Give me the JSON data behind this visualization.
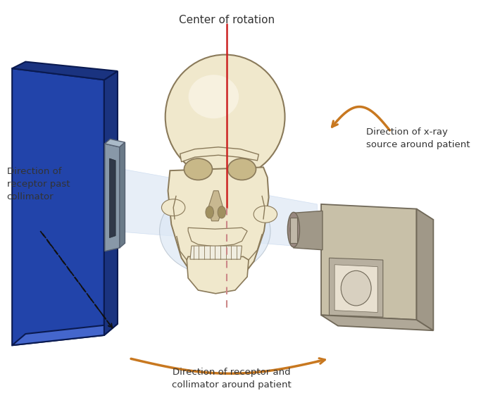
{
  "title": "Center of rotation",
  "label_receptor_past": "Direction of\nreceptor past\ncollimator",
  "label_xray_source": "Direction of x-ray\nsource around patient",
  "label_receptor_collimator": "Direction of receptor and\ncollimator around patient",
  "bg_color": "#ffffff",
  "panel_front_color": "#2244aa",
  "panel_top_color": "#4466cc",
  "panel_side_color": "#1a3380",
  "panel_edge_color": "#0a1a50",
  "collimator_face_color": "#8898a8",
  "collimator_side_color": "#6a7a88",
  "collimator_slot_color": "#303848",
  "skull_fill": "#f0e8cc",
  "skull_stroke": "#8a7a5a",
  "skull_shadow": "#c8b890",
  "xray_box_fill": "#c8c0a8",
  "xray_box_top": "#b0a898",
  "xray_box_side": "#a09888",
  "xray_box_stroke": "#706858",
  "tube_fill": "#a09888",
  "tube_inner": "#585048",
  "beam_fill": "#d0dff0",
  "beam_alpha": 0.5,
  "center_line_solid": "#cc2222",
  "center_line_dash": "#cc8888",
  "arrow_color": "#c87820",
  "text_color": "#333333",
  "dashed_arrow_color": "#111111",
  "font_size_title": 11,
  "font_size_labels": 9.5
}
